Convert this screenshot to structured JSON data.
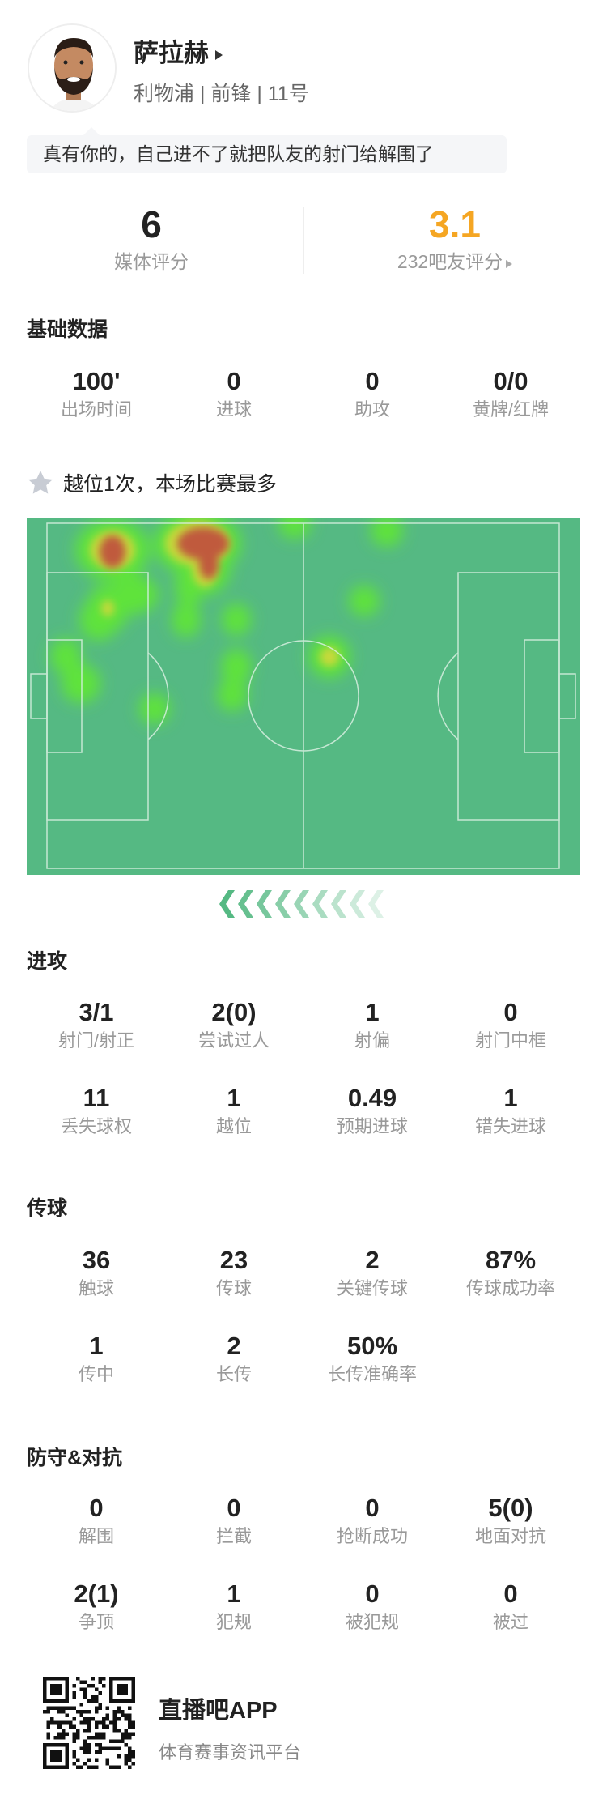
{
  "player": {
    "name": "萨拉赫",
    "subtitle": "利物浦 | 前锋 | 11号",
    "comment": "真有你的，自己进不了就把队友的射门给解围了"
  },
  "ratings": {
    "media_score": "6",
    "media_label": "媒体评分",
    "fan_score": "3.1",
    "fan_label": "232吧友评分",
    "fan_color": "#f5a623"
  },
  "basic": {
    "title": "基础数据",
    "items": [
      {
        "value": "100'",
        "label": "出场时间"
      },
      {
        "value": "0",
        "label": "进球"
      },
      {
        "value": "0",
        "label": "助攻"
      },
      {
        "value": "0/0",
        "label": "黄牌/红牌"
      }
    ]
  },
  "highlight": {
    "icon": "star-icon",
    "text": "越位1次，本场比赛最多"
  },
  "heatmap": {
    "pitch_color": "#55b983",
    "attack_direction": "left"
  },
  "attack": {
    "title": "进攻",
    "items": [
      {
        "value": "3/1",
        "label": "射门/射正"
      },
      {
        "value": "2(0)",
        "label": "尝试过人"
      },
      {
        "value": "1",
        "label": "射偏"
      },
      {
        "value": "0",
        "label": "射门中框"
      },
      {
        "value": "11",
        "label": "丢失球权"
      },
      {
        "value": "1",
        "label": "越位"
      },
      {
        "value": "0.49",
        "label": "预期进球"
      },
      {
        "value": "1",
        "label": "错失进球"
      }
    ]
  },
  "passing": {
    "title": "传球",
    "items": [
      {
        "value": "36",
        "label": "触球"
      },
      {
        "value": "23",
        "label": "传球"
      },
      {
        "value": "2",
        "label": "关键传球"
      },
      {
        "value": "87%",
        "label": "传球成功率"
      },
      {
        "value": "1",
        "label": "传中"
      },
      {
        "value": "2",
        "label": "长传"
      },
      {
        "value": "50%",
        "label": "长传准确率"
      }
    ]
  },
  "defense": {
    "title": "防守&对抗",
    "items": [
      {
        "value": "0",
        "label": "解围"
      },
      {
        "value": "0",
        "label": "拦截"
      },
      {
        "value": "0",
        "label": "抢断成功"
      },
      {
        "value": "5(0)",
        "label": "地面对抗"
      },
      {
        "value": "2(1)",
        "label": "争顶"
      },
      {
        "value": "1",
        "label": "犯规"
      },
      {
        "value": "0",
        "label": "被犯规"
      },
      {
        "value": "0",
        "label": "被过"
      }
    ]
  },
  "footer": {
    "app_name": "直播吧APP",
    "tagline": "体育赛事资讯平台"
  }
}
